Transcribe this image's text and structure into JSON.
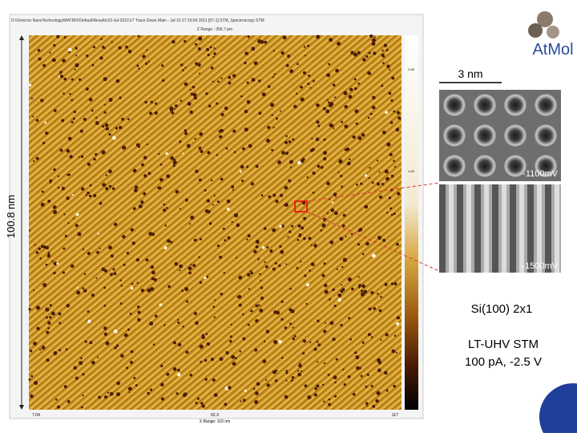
{
  "header": {
    "file_path": "D:\\Omicron NanoTechnology\\MATRIX\\Default\\Results\\10-Jul-2011\\17 Trace Down Main - Jul 10 17:15:54 2011 [57-1] STM_Spectroscopy STM"
  },
  "image": {
    "z_range": "Z Range : 356.7 pm",
    "x_range": "X Range: 110 nm",
    "y_size": "100.8 nm",
    "x_ticks": [
      "7.04",
      "62.3",
      "117"
    ],
    "colorbar_ticks": [
      "2.95",
      "1.00"
    ]
  },
  "insets": {
    "scale": "3 nm",
    "top_bias": "-1100mV",
    "bottom_bias": "-1500mV"
  },
  "caption": {
    "surface": "Si(100) 2x1",
    "method": "LT-UHV STM",
    "params": "100 pA, -2.5 V"
  },
  "logo": "AtMol"
}
